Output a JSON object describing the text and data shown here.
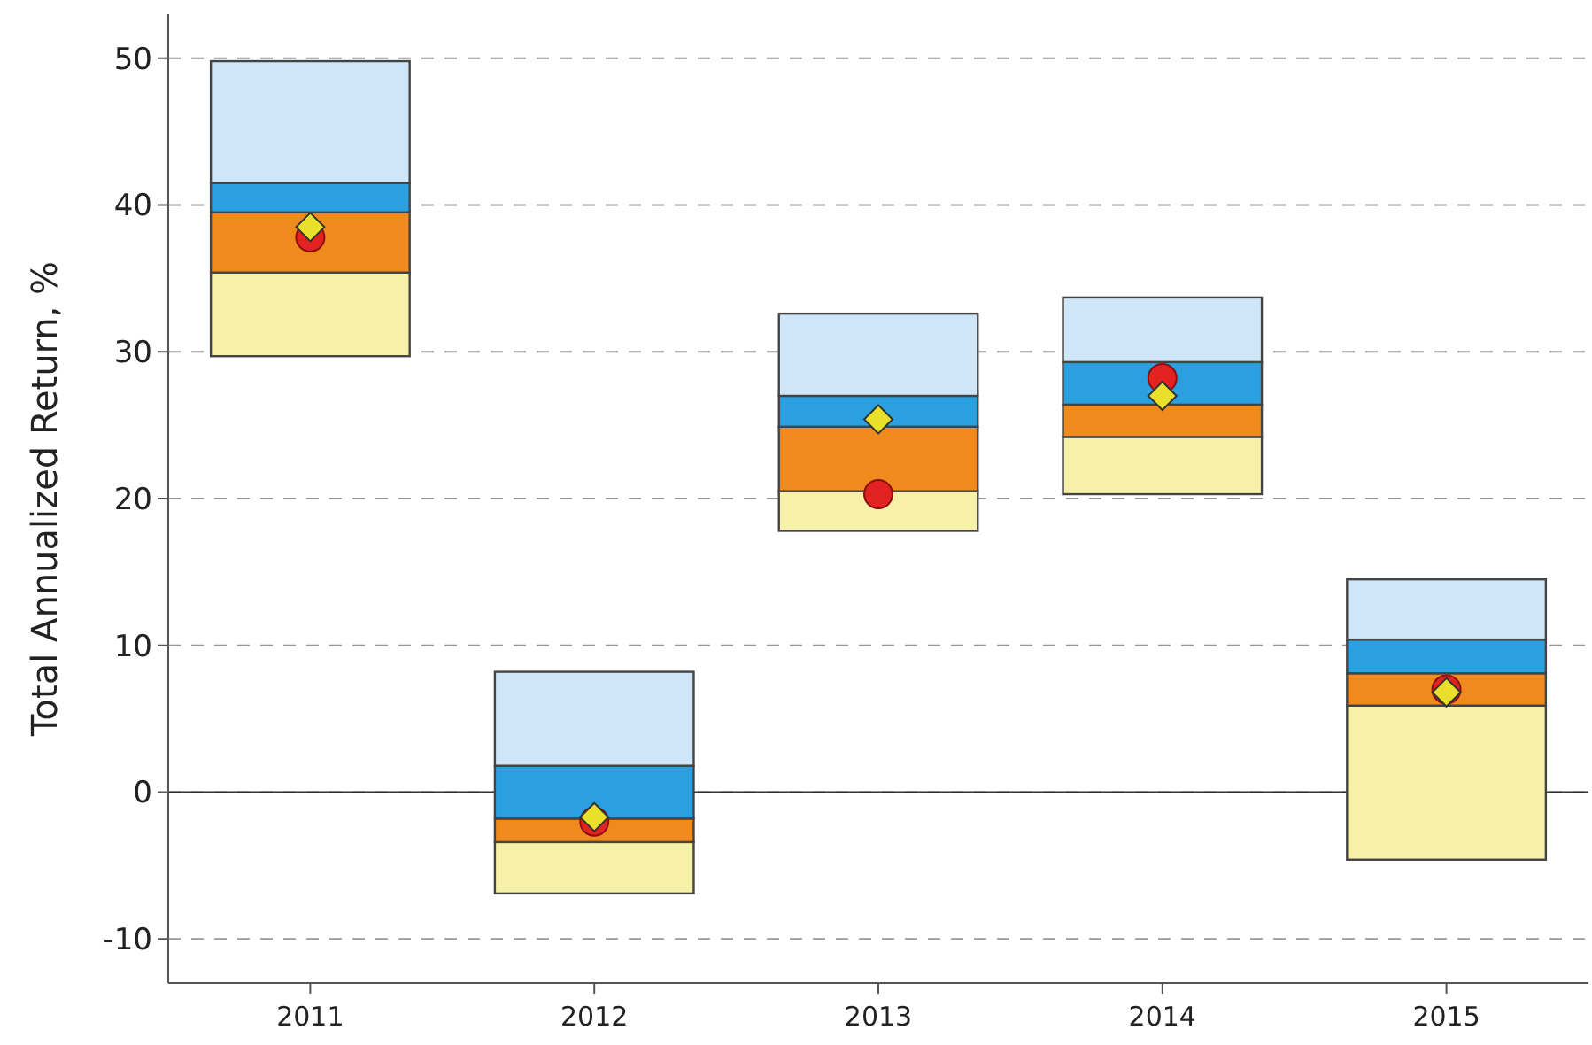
{
  "chart_data": {
    "type": "bar",
    "ylabel": "Total Annualized Return, %",
    "categories": [
      "2011",
      "2012",
      "2013",
      "2014",
      "2015"
    ],
    "series": [
      {
        "color": "#f7f0a8",
        "base": [
          29.7,
          -6.9,
          17.8,
          20.3,
          -4.6
        ],
        "values": [
          5.7,
          3.5,
          2.7,
          3.9,
          10.5
        ]
      },
      {
        "color": "#f18a1c",
        "base": [
          35.4,
          -3.4,
          20.5,
          24.2,
          5.9
        ],
        "values": [
          4.1,
          1.6,
          4.4,
          2.2,
          2.2
        ]
      },
      {
        "color": "#2aa0e0",
        "base": [
          39.5,
          -1.8,
          24.9,
          26.4,
          8.1
        ],
        "values": [
          2.0,
          3.6,
          2.1,
          2.9,
          2.3
        ]
      },
      {
        "color": "#cfe6f8",
        "base": [
          41.5,
          1.8,
          27.0,
          29.3,
          10.4
        ],
        "values": [
          8.3,
          6.4,
          5.6,
          4.4,
          4.1
        ]
      },
      {
        "type": "scatter",
        "marker": "circle",
        "color": "#e32222",
        "values": [
          37.8,
          -2.0,
          20.3,
          28.2,
          7.0
        ]
      },
      {
        "type": "scatter",
        "marker": "diamond",
        "color": "#e8e02a",
        "values": [
          38.5,
          -1.7,
          25.4,
          27.0,
          6.8
        ]
      }
    ],
    "ylim": [
      -13,
      53
    ],
    "yticks": [
      -10,
      0,
      10,
      20,
      30,
      40,
      50
    ],
    "grid": "y",
    "ref_lines": [
      {
        "axis": "y",
        "value": 0,
        "color": "#333333",
        "line_style": "solid"
      }
    ]
  }
}
